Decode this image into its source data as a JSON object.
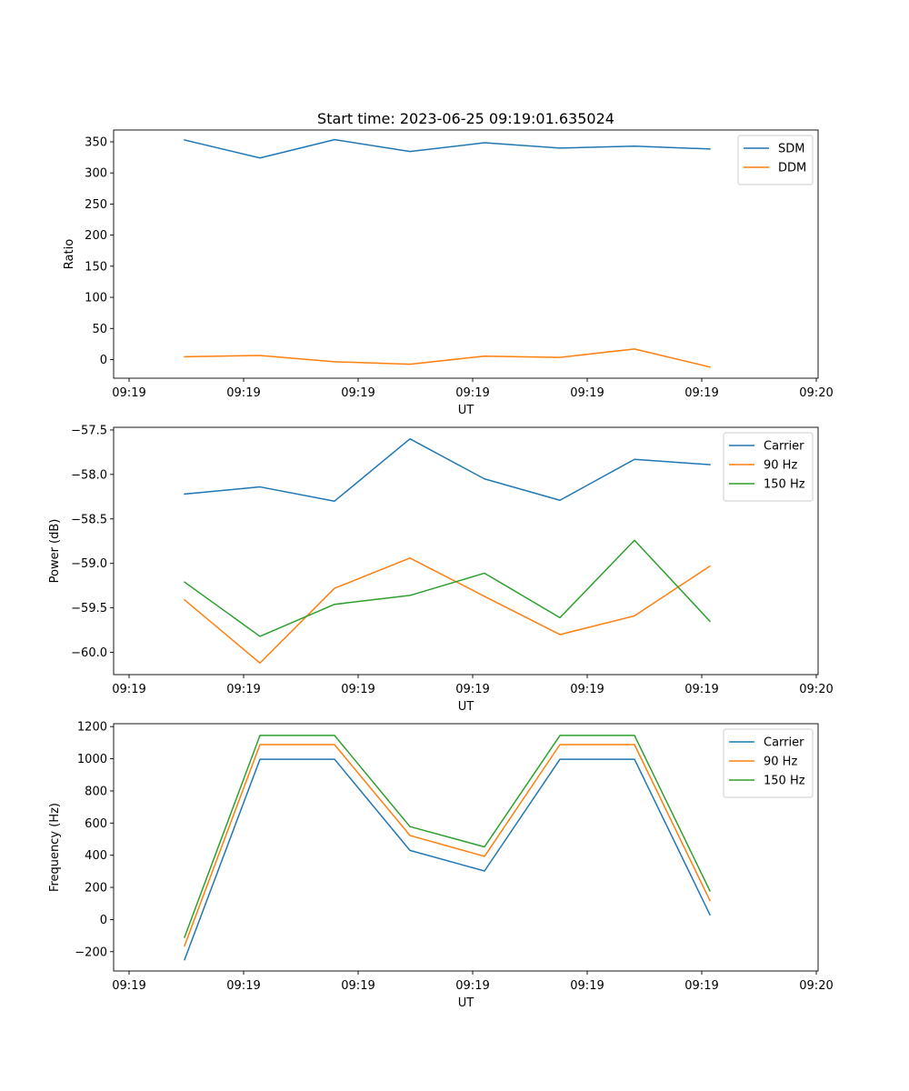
{
  "chart_data": [
    {
      "type": "line",
      "title": "Start time: 2023-06-25 09:19:01.635024",
      "xlabel": "UT",
      "ylabel": "Ratio",
      "x_tick_labels": [
        "09:19",
        "09:19",
        "09:19",
        "09:19",
        "09:19",
        "09:19",
        "09:20"
      ],
      "y_ticks": [
        0,
        50,
        100,
        150,
        200,
        250,
        300,
        350
      ],
      "ylim": [
        -30,
        369
      ],
      "grid": false,
      "legend_position": "top-right",
      "series": [
        {
          "name": "SDM",
          "color": "#1f77b4",
          "values": [
            353.0,
            324.0,
            353.5,
            334.5,
            348.5,
            340.0,
            343.0,
            338.5
          ]
        },
        {
          "name": "DDM",
          "color": "#ff7f0e",
          "values": [
            4.5,
            6.5,
            -3.5,
            -7.5,
            5.5,
            3.5,
            17.0,
            -12.0
          ]
        }
      ]
    },
    {
      "type": "line",
      "title": "",
      "xlabel": "UT",
      "ylabel": "Power (dB)",
      "x_tick_labels": [
        "09:19",
        "09:19",
        "09:19",
        "09:19",
        "09:19",
        "09:19",
        "09:20"
      ],
      "y_ticks": [
        -60.0,
        -59.5,
        -59.0,
        -58.5,
        -58.0,
        -57.5
      ],
      "y_tick_labels": [
        "−60.0",
        "−59.5",
        "−59.0",
        "−58.5",
        "−58.0",
        "−57.5"
      ],
      "ylim": [
        -60.25,
        -57.47
      ],
      "grid": false,
      "legend_position": "top-right",
      "series": [
        {
          "name": "Carrier",
          "color": "#1f77b4",
          "values": [
            -58.22,
            -58.14,
            -58.3,
            -57.6,
            -58.05,
            -58.29,
            -57.83,
            -57.89
          ]
        },
        {
          "name": "90 Hz",
          "color": "#ff7f0e",
          "values": [
            -59.41,
            -60.12,
            -59.28,
            -58.94,
            -59.37,
            -59.8,
            -59.59,
            -59.03
          ]
        },
        {
          "name": "150 Hz",
          "color": "#2ca02c",
          "values": [
            -59.21,
            -59.82,
            -59.46,
            -59.36,
            -59.11,
            -59.61,
            -58.74,
            -59.65
          ]
        }
      ]
    },
    {
      "type": "line",
      "title": "",
      "xlabel": "UT",
      "ylabel": "Frequency (Hz)",
      "x_tick_labels": [
        "09:19",
        "09:19",
        "09:19",
        "09:19",
        "09:19",
        "09:19",
        "09:20"
      ],
      "y_ticks": [
        -200,
        0,
        200,
        400,
        600,
        800,
        1000,
        1200
      ],
      "y_tick_labels": [
        "−200",
        "0",
        "200",
        "400",
        "600",
        "800",
        "1000",
        "1200"
      ],
      "ylim": [
        -320,
        1218
      ],
      "grid": false,
      "legend_position": "top-right",
      "series": [
        {
          "name": "Carrier",
          "color": "#1f77b4",
          "values": [
            -250,
            997,
            997,
            430,
            302,
            997,
            997,
            30
          ]
        },
        {
          "name": "90 Hz",
          "color": "#ff7f0e",
          "values": [
            -163,
            1088,
            1088,
            523,
            393,
            1088,
            1088,
            118
          ]
        },
        {
          "name": "150 Hz",
          "color": "#2ca02c",
          "values": [
            -110,
            1145,
            1145,
            578,
            452,
            1145,
            1145,
            178
          ]
        }
      ]
    }
  ]
}
